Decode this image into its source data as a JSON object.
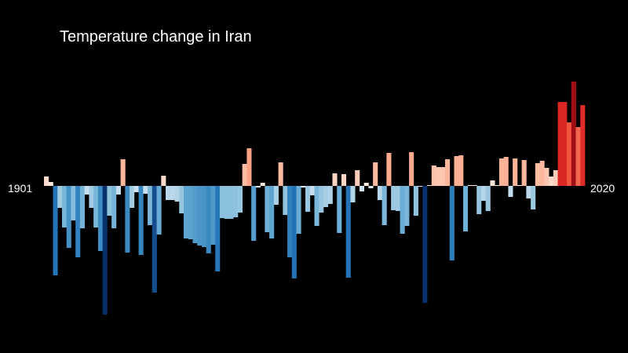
{
  "chart_data": {
    "type": "bar",
    "title": "Temperature change in Iran",
    "start_label": "1901",
    "end_label": "2020",
    "x_start": 1901,
    "x_end": 2020,
    "xlabel": "",
    "ylabel": "",
    "ylim": [
      -1.65,
      1.9
    ],
    "grid": false,
    "legend": "none",
    "values": [
      0.12,
      0.05,
      -1.14,
      -0.28,
      -0.53,
      -0.79,
      -0.44,
      -0.91,
      -0.54,
      -0.11,
      -0.28,
      -0.53,
      -0.83,
      -1.64,
      -0.38,
      -0.54,
      -0.11,
      0.34,
      -0.85,
      -0.28,
      -0.08,
      -0.88,
      -0.1,
      -0.5,
      -1.36,
      -0.62,
      0.13,
      -0.18,
      -0.18,
      -0.2,
      -0.35,
      -0.67,
      -0.68,
      -0.73,
      -0.76,
      -0.78,
      -0.86,
      -0.75,
      -1.09,
      -0.41,
      -0.42,
      -0.42,
      -0.4,
      -0.34,
      0.28,
      0.48,
      -0.7,
      -0.02,
      0.04,
      -0.59,
      -0.67,
      -0.24,
      0.3,
      -0.37,
      -0.91,
      -1.18,
      -0.61,
      -0.02,
      -0.33,
      -0.12,
      -0.51,
      -0.34,
      -0.27,
      -0.23,
      0.16,
      -0.6,
      0.15,
      -1.17,
      -0.21,
      0.2,
      -0.07,
      0.04,
      -0.03,
      0.3,
      -0.18,
      -0.5,
      0.42,
      -0.31,
      -0.32,
      -0.61,
      -0.51,
      0.43,
      -0.38,
      -0.01,
      -1.49,
      0.01,
      0.26,
      0.24,
      0.24,
      0.34,
      -0.95,
      0.38,
      0.39,
      -0.58,
      0.01,
      0.01,
      -0.36,
      -0.19,
      -0.32,
      0.07,
      0.01,
      0.35,
      0.37,
      -0.14,
      0.35,
      0.01,
      0.33,
      -0.16,
      -0.3,
      0.29,
      0.32,
      0.23,
      0.12,
      0.2,
      1.07,
      1.07,
      0.81,
      1.33,
      0.75,
      1.03
    ]
  }
}
